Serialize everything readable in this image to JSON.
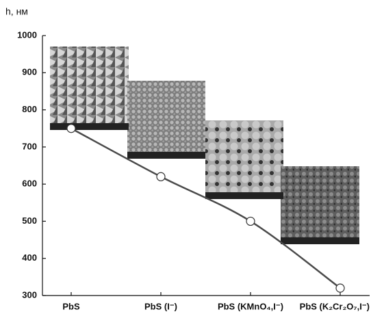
{
  "chart_data": {
    "type": "line",
    "y_label": "h, нм",
    "categories": [
      "PbS",
      "PbS (I⁻)",
      "PbS (KMnO₄,I⁻)",
      "PbS (K₂Cr₂O₇,I⁻)"
    ],
    "series": [
      {
        "name": "h",
        "color": "#4a4a4a",
        "values": [
          750,
          620,
          500,
          320
        ]
      }
    ],
    "ylim": [
      300,
      1000
    ],
    "yticks": [
      300,
      400,
      500,
      600,
      700,
      800,
      900,
      1000
    ]
  }
}
